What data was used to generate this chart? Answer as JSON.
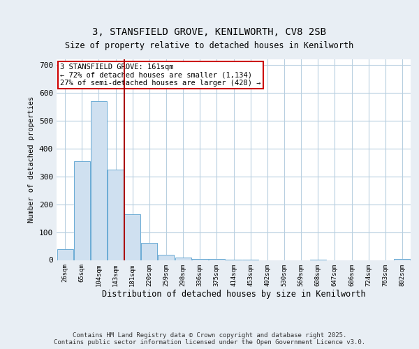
{
  "title_line1": "3, STANSFIELD GROVE, KENILWORTH, CV8 2SB",
  "title_line2": "Size of property relative to detached houses in Kenilworth",
  "xlabel": "Distribution of detached houses by size in Kenilworth",
  "ylabel": "Number of detached properties",
  "categories": [
    "26sqm",
    "65sqm",
    "104sqm",
    "143sqm",
    "181sqm",
    "220sqm",
    "259sqm",
    "298sqm",
    "336sqm",
    "375sqm",
    "414sqm",
    "453sqm",
    "492sqm",
    "530sqm",
    "569sqm",
    "608sqm",
    "647sqm",
    "686sqm",
    "724sqm",
    "763sqm",
    "802sqm"
  ],
  "values": [
    40,
    355,
    570,
    325,
    165,
    62,
    20,
    8,
    5,
    3,
    1,
    1,
    0,
    0,
    0,
    1,
    0,
    0,
    0,
    0,
    3
  ],
  "bar_color": "#cfe0f0",
  "bar_edge_color": "#6aaad4",
  "red_line_index": 4,
  "annotation_text": "3 STANSFIELD GROVE: 161sqm\n← 72% of detached houses are smaller (1,134)\n27% of semi-detached houses are larger (428) →",
  "annotation_box_color": "#ffffff",
  "annotation_box_edge": "#cc0000",
  "ylim": [
    0,
    720
  ],
  "yticks": [
    0,
    100,
    200,
    300,
    400,
    500,
    600,
    700
  ],
  "footer_line1": "Contains HM Land Registry data © Crown copyright and database right 2025.",
  "footer_line2": "Contains public sector information licensed under the Open Government Licence v3.0.",
  "bg_color": "#e8eef4",
  "plot_bg_color": "#ffffff",
  "grid_color": "#b8cfe0"
}
